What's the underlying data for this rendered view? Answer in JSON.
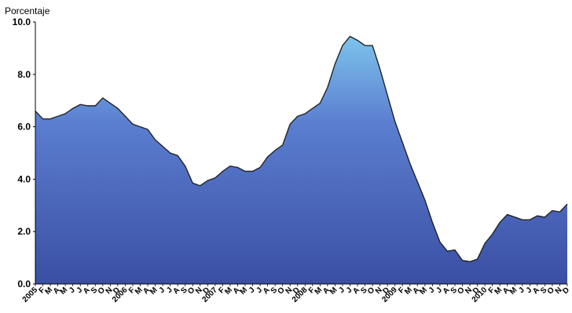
{
  "chart_data": {
    "type": "area",
    "ylabel": "Porcentaje",
    "xlabel": "",
    "ylim": [
      0,
      10
    ],
    "grid": false,
    "y_ticks": [
      "0.0",
      "2.0",
      "4.0",
      "6.0",
      "8.0",
      "10.0"
    ],
    "x_ticks": [
      "2005",
      "F",
      "M",
      "A",
      "M",
      "J",
      "J",
      "A",
      "S",
      "O",
      "N",
      "D",
      "2006",
      "F",
      "M",
      "A",
      "M",
      "J",
      "J",
      "A",
      "S",
      "O",
      "N",
      "D",
      "2007",
      "F",
      "M",
      "A",
      "M",
      "J",
      "J",
      "A",
      "S",
      "O",
      "N",
      "D",
      "2008",
      "F",
      "M",
      "A",
      "M",
      "J",
      "J",
      "A",
      "S",
      "O",
      "N",
      "D",
      "2009",
      "F",
      "M",
      "A",
      "M",
      "J",
      "J",
      "A",
      "S",
      "O",
      "N",
      "D",
      "2010",
      "F",
      "M",
      "A",
      "M",
      "J",
      "J",
      "A",
      "S",
      "O",
      "N",
      "D"
    ],
    "values": [
      6.6,
      6.3,
      6.3,
      6.4,
      6.5,
      6.7,
      6.85,
      6.8,
      6.8,
      7.1,
      6.9,
      6.7,
      6.4,
      6.1,
      6.0,
      5.9,
      5.5,
      5.25,
      5.0,
      4.9,
      4.5,
      3.85,
      3.75,
      3.95,
      4.05,
      4.3,
      4.5,
      4.45,
      4.3,
      4.3,
      4.45,
      4.85,
      5.1,
      5.3,
      6.1,
      6.4,
      6.5,
      6.7,
      6.9,
      7.5,
      8.4,
      9.1,
      9.45,
      9.3,
      9.1,
      9.1,
      8.2,
      7.2,
      6.2,
      5.4,
      4.6,
      3.9,
      3.2,
      2.35,
      1.6,
      1.25,
      1.3,
      0.9,
      0.85,
      0.95,
      1.55,
      1.9,
      2.35,
      2.65,
      2.55,
      2.45,
      2.45,
      2.6,
      2.55,
      2.8,
      2.75,
      3.05
    ],
    "colors": {
      "fill_top": "#7cc3ec",
      "fill_mid": "#5b7ed0",
      "fill_bottom": "#3a4fa3",
      "line": "#222222",
      "axis": "#000000"
    }
  }
}
